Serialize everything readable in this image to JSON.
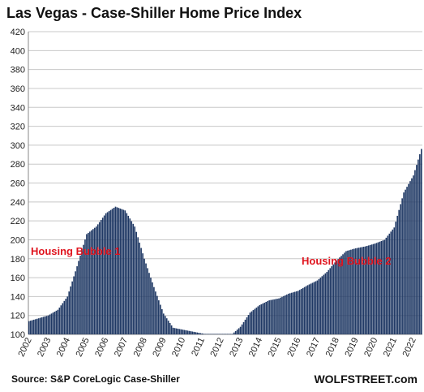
{
  "chart_data": {
    "type": "bar",
    "title": "Las Vegas - Case-Shiller Home Price Index",
    "ylim": [
      100,
      420
    ],
    "yticks": [
      100,
      120,
      140,
      160,
      180,
      200,
      220,
      240,
      260,
      280,
      300,
      320,
      340,
      360,
      380,
      400,
      420
    ],
    "xlabels": [
      "2002",
      "2003",
      "2004",
      "2005",
      "2006",
      "2007",
      "2008",
      "2009",
      "2010",
      "2011",
      "2012",
      "2013",
      "2014",
      "2015",
      "2016",
      "2017",
      "2018",
      "2019",
      "2020",
      "2021",
      "2022"
    ],
    "grid": true,
    "series_color": "#1f3864",
    "series": [
      {
        "frequency": "monthly",
        "start": "2002-01",
        "keyframes": [
          [
            "2002-01",
            114
          ],
          [
            "2003-01",
            120
          ],
          [
            "2003-07",
            126
          ],
          [
            "2004-01",
            140
          ],
          [
            "2004-07",
            172
          ],
          [
            "2005-01",
            206
          ],
          [
            "2005-07",
            214
          ],
          [
            "2006-01",
            228
          ],
          [
            "2006-07",
            235
          ],
          [
            "2007-01",
            231
          ],
          [
            "2007-07",
            214
          ],
          [
            "2008-01",
            180
          ],
          [
            "2008-07",
            150
          ],
          [
            "2009-01",
            122
          ],
          [
            "2009-07",
            107
          ],
          [
            "2010-01",
            105
          ],
          [
            "2010-07",
            103
          ],
          [
            "2011-01",
            101
          ],
          [
            "2011-07",
            99
          ],
          [
            "2012-01",
            97
          ],
          [
            "2012-07",
            99
          ],
          [
            "2013-01",
            108
          ],
          [
            "2013-07",
            123
          ],
          [
            "2014-01",
            131
          ],
          [
            "2014-07",
            136
          ],
          [
            "2015-01",
            138
          ],
          [
            "2015-07",
            143
          ],
          [
            "2016-01",
            146
          ],
          [
            "2016-07",
            152
          ],
          [
            "2017-01",
            157
          ],
          [
            "2017-07",
            166
          ],
          [
            "2018-01",
            178
          ],
          [
            "2018-07",
            188
          ],
          [
            "2019-01",
            191
          ],
          [
            "2019-07",
            193
          ],
          [
            "2020-01",
            196
          ],
          [
            "2020-07",
            200
          ],
          [
            "2021-01",
            213
          ],
          [
            "2021-07",
            250
          ],
          [
            "2022-01",
            268
          ],
          [
            "2022-06",
            296
          ]
        ]
      }
    ],
    "annotations": [
      "Housing Bubble 1",
      "Housing Bubble 2"
    ],
    "source": "Source: S&P CoreLogic Case-Shiller",
    "brand": "WOLFSTREET.com"
  }
}
